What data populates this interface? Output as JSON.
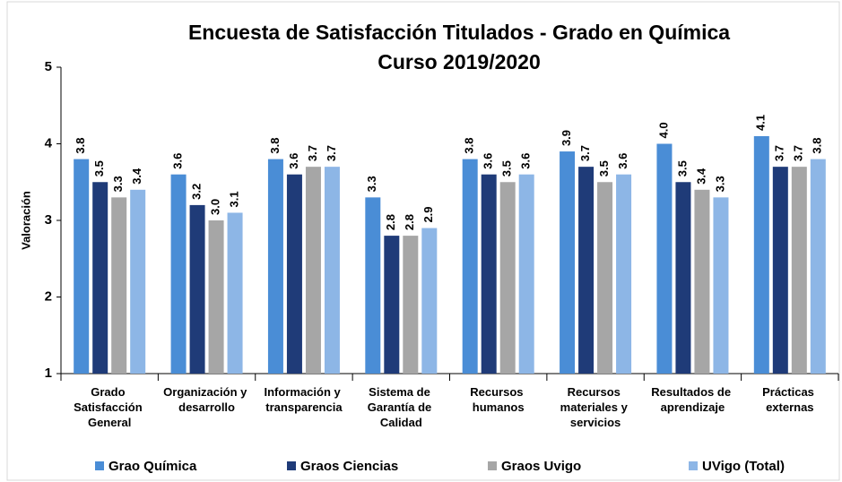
{
  "chart_data": {
    "type": "bar",
    "title": "Encuesta de Satisfacción Titulados - Grado en Química",
    "subtitle": "Curso 2019/2020",
    "y_label": "Valoración",
    "categories": [
      "Grado Satisfacción General",
      "Organización y desarrollo",
      "Información y transparencia",
      "Sistema de Garantía de Calidad",
      "Recursos humanos",
      "Recursos materiales y servicios",
      "Resultados de aprendizaje",
      "Prácticas externas"
    ],
    "series": [
      {
        "name": "Grao Química",
        "color": "#4a8dd6",
        "values": [
          3.8,
          3.6,
          3.8,
          3.3,
          3.8,
          3.9,
          4.0,
          4.1
        ],
        "value_labels": [
          "3.8",
          "3.6",
          "3.8",
          "3.3",
          "3.8",
          "3.9",
          "4.0",
          "4.1"
        ]
      },
      {
        "name": "Graos Ciencias",
        "color": "#1f3b78",
        "values": [
          3.5,
          3.2,
          3.6,
          2.8,
          3.6,
          3.7,
          3.5,
          3.7
        ],
        "value_labels": [
          "3.5",
          "3.2",
          "3.6",
          "2.8",
          "3.6",
          "3.7",
          "3.5",
          "3.7"
        ]
      },
      {
        "name": "Graos Uvigo",
        "color": "#a6a6a6",
        "values": [
          3.3,
          3.0,
          3.7,
          2.8,
          3.5,
          3.5,
          3.4,
          3.7
        ],
        "value_labels": [
          "3.3",
          "3.0",
          "3.7",
          "2.8",
          "3.5",
          "3.5",
          "3.4",
          "3.7"
        ]
      },
      {
        "name": "UVigo (Total)",
        "color": "#8db6e6",
        "values": [
          3.4,
          3.1,
          3.7,
          2.9,
          3.6,
          3.6,
          3.3,
          3.8
        ],
        "value_labels": [
          "3.4",
          "3.1",
          "3.7",
          "2.9",
          "3.6",
          "3.6",
          "3.3",
          "3.8"
        ]
      }
    ],
    "ylim": [
      1,
      5
    ],
    "yticks": [
      1,
      2,
      3,
      4,
      5
    ],
    "grid": false,
    "legend": "bottom"
  }
}
